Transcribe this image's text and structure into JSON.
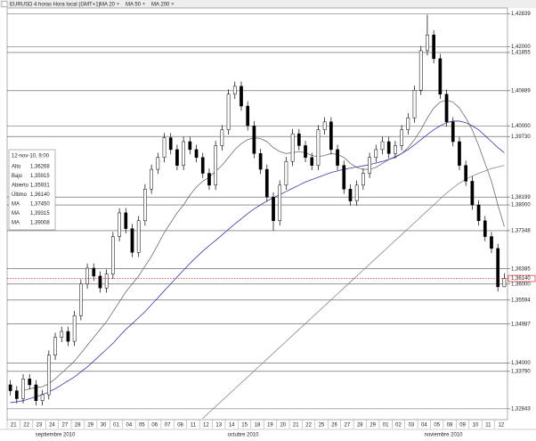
{
  "chart_data": {
    "type": "candlestick",
    "title": "EURUSD 4 horas Hora local (GMT+1)",
    "categories": [
      "21",
      null,
      "22",
      null,
      "23",
      null,
      "24",
      null,
      "27",
      null,
      "28",
      null,
      "29",
      null,
      "30",
      null,
      "01",
      null,
      "04",
      null,
      "05",
      null,
      "06",
      null,
      "07",
      null,
      "08",
      null,
      "11",
      null,
      "12",
      null,
      "13",
      null,
      "14",
      null,
      "15",
      null,
      "18",
      null,
      "19",
      null,
      "20",
      null,
      "21",
      null,
      "22",
      null,
      "25",
      null,
      "26",
      null,
      "27",
      null,
      "28",
      null,
      "29",
      null,
      "01",
      null,
      "02",
      null,
      "03",
      null,
      "04",
      null,
      "05",
      null,
      "08",
      null,
      "09",
      null,
      "10",
      null,
      "11",
      null,
      "12",
      null
    ],
    "months": [
      "septiembre 2010",
      "octubre 2010",
      "noviembre 2010"
    ],
    "open": [
      1.3345,
      1.333,
      1.331,
      1.336,
      1.3345,
      1.3305,
      1.332,
      1.342,
      1.3465,
      1.348,
      1.3455,
      1.352,
      1.36,
      1.364,
      1.362,
      1.359,
      1.3625,
      1.372,
      1.378,
      1.374,
      1.368,
      1.376,
      1.384,
      1.389,
      1.392,
      1.397,
      1.394,
      1.39,
      1.396,
      1.394,
      1.392,
      1.388,
      1.385,
      1.395,
      1.399,
      1.408,
      1.41,
      1.405,
      1.4,
      1.393,
      1.389,
      1.382,
      1.376,
      1.385,
      1.391,
      1.398,
      1.395,
      1.392,
      1.39,
      1.399,
      1.401,
      1.394,
      1.39,
      1.384,
      1.381,
      1.385,
      1.388,
      1.392,
      1.394,
      1.396,
      1.393,
      1.395,
      1.399,
      1.402,
      1.409,
      1.419,
      1.423,
      1.417,
      1.408,
      1.401,
      1.396,
      1.39,
      1.386,
      1.38,
      1.376,
      1.372,
      1.369,
      1.3593
    ],
    "high": [
      1.3357,
      1.3342,
      1.3372,
      1.3372,
      1.3357,
      1.3332,
      1.3432,
      1.3477,
      1.3492,
      1.3492,
      1.3532,
      1.3612,
      1.3652,
      1.3652,
      1.3632,
      1.3637,
      1.3732,
      1.3792,
      1.3792,
      1.3752,
      1.3772,
      1.3852,
      1.3902,
      1.3932,
      1.3982,
      1.3982,
      1.3952,
      1.3972,
      1.3972,
      1.3952,
      1.3932,
      1.3892,
      1.3962,
      1.4002,
      1.4092,
      1.4112,
      1.4112,
      1.4062,
      1.4012,
      1.3942,
      1.3902,
      1.3832,
      1.3862,
      1.3922,
      1.3992,
      1.3992,
      1.3962,
      1.3932,
      1.4002,
      1.4022,
      1.4022,
      1.3952,
      1.3912,
      1.3852,
      1.3862,
      1.3892,
      1.3932,
      1.3952,
      1.3972,
      1.3972,
      1.3962,
      1.4002,
      1.4032,
      1.4102,
      1.4202,
      1.4281,
      1.4242,
      1.4182,
      1.4092,
      1.4022,
      1.3972,
      1.3912,
      1.3872,
      1.3812,
      1.3772,
      1.3732,
      1.3702,
      1.3627
    ],
    "low": [
      1.3318,
      1.3298,
      1.3298,
      1.3333,
      1.3293,
      1.3293,
      1.3308,
      1.3408,
      1.3453,
      1.3443,
      1.3443,
      1.3508,
      1.3588,
      1.3608,
      1.3578,
      1.3578,
      1.3613,
      1.3708,
      1.3728,
      1.3668,
      1.3668,
      1.3748,
      1.3828,
      1.3878,
      1.3908,
      1.3928,
      1.3888,
      1.3888,
      1.3928,
      1.3908,
      1.3868,
      1.3838,
      1.3838,
      1.3938,
      1.3978,
      1.4068,
      1.4038,
      1.3988,
      1.3918,
      1.3878,
      1.3808,
      1.3735,
      1.3748,
      1.3838,
      1.3898,
      1.3938,
      1.3908,
      1.3888,
      1.3888,
      1.3978,
      1.3928,
      1.3888,
      1.3828,
      1.3798,
      1.3798,
      1.3838,
      1.3868,
      1.3908,
      1.3928,
      1.3918,
      1.3918,
      1.3938,
      1.3978,
      1.4008,
      1.4078,
      1.4178,
      1.4158,
      1.4068,
      1.3998,
      1.3948,
      1.3888,
      1.3848,
      1.3788,
      1.3748,
      1.3708,
      1.3678,
      1.3581,
      1.3592
    ],
    "close": [
      1.333,
      1.331,
      1.336,
      1.3345,
      1.3305,
      1.332,
      1.342,
      1.3465,
      1.348,
      1.3455,
      1.352,
      1.36,
      1.364,
      1.362,
      1.359,
      1.3625,
      1.372,
      1.378,
      1.374,
      1.368,
      1.376,
      1.384,
      1.389,
      1.392,
      1.397,
      1.394,
      1.39,
      1.396,
      1.394,
      1.392,
      1.388,
      1.385,
      1.395,
      1.399,
      1.408,
      1.41,
      1.405,
      1.4,
      1.393,
      1.389,
      1.382,
      1.376,
      1.385,
      1.391,
      1.398,
      1.395,
      1.392,
      1.39,
      1.399,
      1.401,
      1.394,
      1.39,
      1.384,
      1.381,
      1.385,
      1.388,
      1.392,
      1.394,
      1.396,
      1.393,
      1.395,
      1.399,
      1.402,
      1.409,
      1.419,
      1.423,
      1.417,
      1.408,
      1.401,
      1.396,
      1.39,
      1.386,
      1.38,
      1.376,
      1.372,
      1.369,
      1.3593,
      1.3614
    ],
    "up_color": "#ffffff",
    "down_color": "#000000",
    "series": [
      {
        "name": "MA 20",
        "color": "#6e6e6e",
        "values": [
          null,
          null,
          1.333,
          1.3335,
          1.3338,
          1.334,
          1.3348,
          1.336,
          1.3375,
          1.339,
          1.3405,
          1.3425,
          1.3445,
          1.3465,
          1.3485,
          1.3505,
          1.353,
          1.3555,
          1.358,
          1.36,
          1.362,
          1.3645,
          1.367,
          1.37,
          1.373,
          1.3755,
          1.378,
          1.38,
          1.3825,
          1.3845,
          1.386,
          1.387,
          1.3885,
          1.39,
          1.392,
          1.394,
          1.3955,
          1.3965,
          1.397,
          1.3968,
          1.396,
          1.3945,
          1.3935,
          1.393,
          1.3932,
          1.3935,
          1.3932,
          1.3925,
          1.3922,
          1.3925,
          1.393,
          1.3928,
          1.392,
          1.3905,
          1.3895,
          1.389,
          1.389,
          1.3895,
          1.3905,
          1.3915,
          1.392,
          1.393,
          1.3945,
          1.3965,
          1.399,
          1.402,
          1.4045,
          1.406,
          1.4065,
          1.406,
          1.4045,
          1.402,
          1.399,
          1.395,
          1.3905,
          1.386,
          1.38,
          1.3745
        ]
      },
      {
        "name": "MA 50",
        "color": "#3a3aa8",
        "values": [
          1.33,
          1.3302,
          1.3305,
          1.331,
          1.3315,
          1.332,
          1.3327,
          1.3335,
          1.3345,
          1.3355,
          1.3365,
          1.3378,
          1.339,
          1.3405,
          1.342,
          1.3435,
          1.345,
          1.3468,
          1.3485,
          1.35,
          1.3515,
          1.353,
          1.3548,
          1.3565,
          1.3583,
          1.36,
          1.3618,
          1.3635,
          1.3652,
          1.3668,
          1.3683,
          1.3697,
          1.371,
          1.3724,
          1.3738,
          1.3752,
          1.3765,
          1.3778,
          1.379,
          1.38,
          1.381,
          1.3818,
          1.3826,
          1.3834,
          1.3842,
          1.385,
          1.3858,
          1.3864,
          1.387,
          1.3876,
          1.3882,
          1.3886,
          1.389,
          1.3893,
          1.3896,
          1.3899,
          1.3902,
          1.3906,
          1.391,
          1.3915,
          1.3922,
          1.393,
          1.394,
          1.3952,
          1.3965,
          1.3978,
          1.399,
          1.4,
          1.4008,
          1.4012,
          1.4012,
          1.4008,
          1.4,
          1.399,
          1.3975,
          1.396,
          1.3945,
          1.3932
        ]
      },
      {
        "name": "MA 200",
        "color": "#8a8a8a",
        "values": [
          null,
          null,
          null,
          null,
          null,
          null,
          null,
          null,
          null,
          null,
          null,
          null,
          null,
          null,
          null,
          null,
          null,
          null,
          null,
          null,
          null,
          null,
          null,
          null,
          null,
          null,
          null,
          null,
          null,
          null,
          1.326,
          1.3275,
          1.329,
          1.3305,
          1.332,
          1.3335,
          1.335,
          1.3365,
          1.338,
          1.3395,
          1.341,
          1.3425,
          1.344,
          1.3455,
          1.347,
          1.3485,
          1.35,
          1.3515,
          1.353,
          1.3545,
          1.356,
          1.3575,
          1.359,
          1.3605,
          1.362,
          1.3635,
          1.365,
          1.3665,
          1.368,
          1.3695,
          1.371,
          1.3725,
          1.374,
          1.3755,
          1.377,
          1.3785,
          1.38,
          1.3815,
          1.383,
          1.3843,
          1.3855,
          1.3865,
          1.3873,
          1.388,
          1.3886,
          1.3892,
          1.3896,
          1.39
        ]
      }
    ],
    "ylim": [
      1.3257,
      1.4298
    ],
    "yticks": [
      {
        "value": 1.42839,
        "label": "1,42839"
      },
      {
        "value": 1.42,
        "label": "1,42000"
      },
      {
        "value": 1.41855,
        "label": "1,41855"
      },
      {
        "value": 1.40889,
        "label": "1,40889"
      },
      {
        "value": 1.4,
        "label": "1,40000"
      },
      {
        "value": 1.3973,
        "label": "1,39730"
      },
      {
        "value": 1.38199,
        "label": "1,38199"
      },
      {
        "value": 1.38,
        "label": "1,38000"
      },
      {
        "value": 1.37348,
        "label": "1,37348"
      },
      {
        "value": 1.36385,
        "label": "1,36385"
      },
      {
        "value": 1.36,
        "label": "1,36000"
      },
      {
        "value": 1.35594,
        "label": "1,35594"
      },
      {
        "value": 1.34987,
        "label": "1,34987"
      },
      {
        "value": 1.34,
        "label": "1,34000"
      },
      {
        "value": 1.3379,
        "label": "1,33790"
      },
      {
        "value": 1.32843,
        "label": "1,32843"
      }
    ],
    "grid": true,
    "last_price": {
      "value": 1.3614,
      "label": "1,36140"
    },
    "info": {
      "date": "12-nov-10, 9:00",
      "rows": [
        {
          "label": "Alto",
          "value": "1,36268"
        },
        {
          "label": "Bajo",
          "value": "1,35915"
        },
        {
          "label": "Abierto",
          "value": "1,35931"
        },
        {
          "label": "Último",
          "value": "1,36140"
        },
        {
          "label": "MA",
          "value": "1,37450"
        },
        {
          "label": "MA",
          "value": "1,39315"
        },
        {
          "label": "MA",
          "value": "1,39008"
        }
      ]
    }
  }
}
